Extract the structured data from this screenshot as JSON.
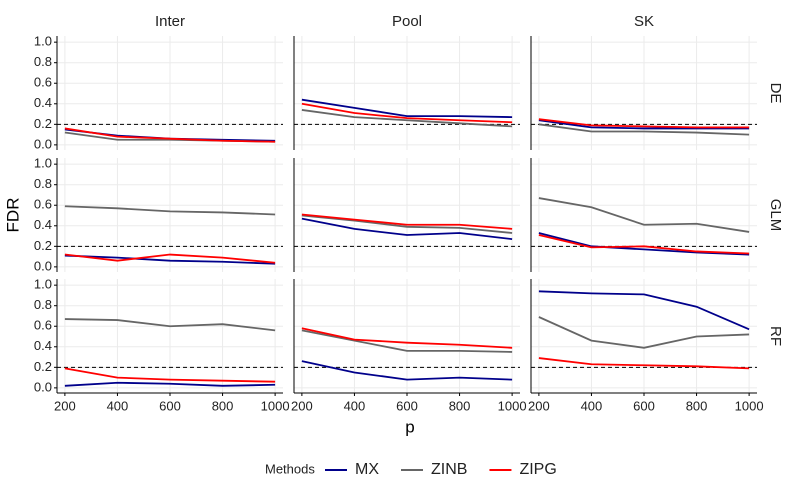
{
  "chart_data": {
    "type": "line",
    "x_label": "p",
    "y_label": "FDR",
    "legend_title": "Methods",
    "columns": [
      "Inter",
      "Pool",
      "SK"
    ],
    "rows": [
      "DE",
      "GLM",
      "RF"
    ],
    "x": [
      200,
      400,
      600,
      800,
      1000
    ],
    "xlim": [
      170,
      1030
    ],
    "xticks": [
      200,
      400,
      600,
      800,
      1000
    ],
    "ylim": [
      -0.05,
      1.06
    ],
    "yticks": [
      {
        "value": 0,
        "label": "0.0"
      },
      0.2,
      0.4,
      0.6,
      0.8,
      {
        "value": 1,
        "label": "1.0"
      }
    ],
    "hline": 0.2,
    "grid": true,
    "series": [
      {
        "name": "MX",
        "color": "#00008b"
      },
      {
        "name": "ZINB",
        "color": "#666666"
      },
      {
        "name": "ZIPG",
        "color": "#ff0000"
      }
    ],
    "panels": [
      [
        [
          [
            0.15,
            0.09,
            0.06,
            0.05,
            0.04
          ],
          [
            0.12,
            0.05,
            0.05,
            0.04,
            0.03
          ],
          [
            0.16,
            0.08,
            0.06,
            0.04,
            0.03
          ]
        ],
        [
          [
            0.44,
            0.36,
            0.28,
            0.28,
            0.27
          ],
          [
            0.34,
            0.27,
            0.24,
            0.21,
            0.18
          ],
          [
            0.4,
            0.31,
            0.26,
            0.24,
            0.22
          ]
        ],
        [
          [
            0.24,
            0.17,
            0.16,
            0.16,
            0.16
          ],
          [
            0.2,
            0.13,
            0.13,
            0.12,
            0.1
          ],
          [
            0.25,
            0.19,
            0.18,
            0.17,
            0.17
          ]
        ]
      ],
      [
        [
          [
            0.11,
            0.09,
            0.06,
            0.05,
            0.03
          ],
          [
            0.59,
            0.57,
            0.54,
            0.53,
            0.51
          ],
          [
            0.12,
            0.06,
            0.12,
            0.09,
            0.04
          ]
        ],
        [
          [
            0.47,
            0.37,
            0.31,
            0.33,
            0.27
          ],
          [
            0.5,
            0.45,
            0.39,
            0.38,
            0.33
          ],
          [
            0.51,
            0.46,
            0.41,
            0.41,
            0.37
          ]
        ],
        [
          [
            0.33,
            0.2,
            0.17,
            0.14,
            0.12
          ],
          [
            0.67,
            0.58,
            0.41,
            0.42,
            0.34
          ],
          [
            0.31,
            0.19,
            0.2,
            0.15,
            0.13
          ]
        ]
      ],
      [
        [
          [
            0.02,
            0.05,
            0.04,
            0.02,
            0.03
          ],
          [
            0.67,
            0.66,
            0.6,
            0.62,
            0.56
          ],
          [
            0.19,
            0.1,
            0.08,
            0.07,
            0.06
          ]
        ],
        [
          [
            0.26,
            0.15,
            0.08,
            0.1,
            0.08
          ],
          [
            0.56,
            0.46,
            0.36,
            0.36,
            0.35
          ],
          [
            0.58,
            0.47,
            0.44,
            0.42,
            0.39
          ]
        ],
        [
          [
            0.94,
            0.92,
            0.91,
            0.79,
            0.57
          ],
          [
            0.69,
            0.46,
            0.39,
            0.5,
            0.52
          ],
          [
            0.29,
            0.23,
            0.22,
            0.21,
            0.19
          ]
        ]
      ]
    ]
  }
}
